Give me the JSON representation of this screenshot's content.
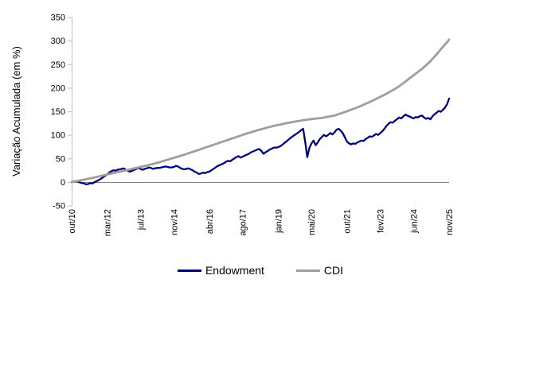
{
  "chart_data": {
    "type": "line",
    "title": "",
    "ylabel": "Variação Acumulada (em %)",
    "xlabel": "",
    "ylim": [
      -50,
      350
    ],
    "y_ticks": [
      350,
      300,
      250,
      200,
      150,
      100,
      50,
      0,
      -50
    ],
    "x_tick_labels": [
      "out/10",
      "mar/12",
      "jul/13",
      "nov/14",
      "abr/16",
      "ago/17",
      "jan/19",
      "mai/20",
      "out/21",
      "fev/23",
      "jun/24",
      "nov/25"
    ],
    "x_tick_positions": [
      0,
      17,
      33,
      49,
      66,
      82,
      99,
      115,
      132,
      148,
      164,
      181
    ],
    "x_range_months": 181,
    "grid": "zero-line-only",
    "legend_position": "bottom-center",
    "colors": {
      "endowment": "#00007f",
      "cdi": "#9e9e9e",
      "axis": "#bfbfbf",
      "zero_line": "#808080",
      "text": "#000000"
    },
    "legend": [
      {
        "label": "Endowment",
        "color": "#00007f"
      },
      {
        "label": "CDI",
        "color": "#9e9e9e"
      }
    ],
    "series": [
      {
        "name": "Endowment",
        "color": "#00007f",
        "stroke_width": 2.3,
        "values": [
          0,
          1,
          2,
          1,
          -1,
          -2,
          -3,
          -5,
          -4,
          -2,
          -3,
          0,
          2,
          4,
          7,
          10,
          13,
          16,
          20,
          23,
          25,
          24,
          26,
          27,
          28,
          29,
          26,
          24,
          22,
          24,
          26,
          28,
          30,
          28,
          26,
          28,
          29,
          31,
          30,
          28,
          29,
          30,
          30,
          31,
          32,
          33,
          32,
          31,
          31,
          32,
          34,
          33,
          30,
          28,
          27,
          28,
          29,
          27,
          25,
          22,
          20,
          17,
          18,
          20,
          19,
          21,
          22,
          25,
          28,
          31,
          34,
          36,
          38,
          40,
          43,
          45,
          44,
          47,
          50,
          53,
          55,
          52,
          54,
          56,
          58,
          60,
          63,
          65,
          67,
          69,
          70,
          66,
          60,
          63,
          66,
          69,
          71,
          73,
          73,
          74,
          76,
          79,
          83,
          86,
          90,
          94,
          97,
          100,
          103,
          106,
          110,
          113,
          85,
          53,
          72,
          82,
          88,
          78,
          84,
          91,
          96,
          100,
          97,
          100,
          104,
          101,
          105,
          111,
          113,
          109,
          104,
          95,
          86,
          82,
          80,
          82,
          81,
          84,
          86,
          88,
          87,
          91,
          94,
          97,
          96,
          99,
          102,
          100,
          104,
          108,
          113,
          119,
          124,
          127,
          126,
          130,
          133,
          137,
          135,
          139,
          143,
          141,
          139,
          137,
          135,
          138,
          137,
          140,
          141,
          137,
          134,
          136,
          133,
          139,
          144,
          147,
          151,
          149,
          153,
          158,
          165,
          177
        ]
      },
      {
        "name": "CDI",
        "color": "#9e9e9e",
        "stroke_width": 2.8,
        "values": [
          0,
          0.8,
          1.7,
          2.5,
          3.3,
          4.2,
          5,
          6,
          7,
          8,
          9,
          10,
          11,
          12,
          13,
          14,
          15,
          16,
          17,
          18,
          19,
          20,
          21,
          22,
          23,
          24,
          25,
          26,
          27,
          28,
          29,
          30,
          31,
          32,
          33,
          34,
          35,
          36.2,
          37.3,
          38.5,
          39.7,
          40.8,
          42,
          43.3,
          44.7,
          46,
          47.3,
          48.7,
          50,
          51.3,
          52.7,
          54,
          55.3,
          56.7,
          58,
          59.5,
          61,
          62.5,
          64,
          65.5,
          67,
          68.5,
          70,
          71.5,
          73,
          74.5,
          76,
          77.5,
          79,
          80.5,
          82,
          83.5,
          85,
          86.5,
          88,
          89.5,
          91,
          92.5,
          94,
          95.5,
          97,
          98.5,
          100,
          101.5,
          103,
          104.3,
          105.7,
          107,
          108.3,
          109.7,
          111,
          112.2,
          113.3,
          114.5,
          115.7,
          116.8,
          118,
          119,
          120,
          121,
          122,
          123,
          124,
          124.8,
          125.7,
          126.5,
          127.3,
          128.2,
          129,
          129.7,
          130.3,
          131,
          131.7,
          132.3,
          133,
          133.5,
          134,
          134.5,
          135,
          135.5,
          136,
          136.8,
          137.7,
          138.5,
          139.3,
          140.2,
          141,
          142.5,
          144,
          145.5,
          147,
          148.5,
          150,
          151.7,
          153.3,
          155,
          156.7,
          158.3,
          160,
          162,
          164,
          166,
          168,
          170,
          172,
          174.2,
          176.3,
          178.5,
          180.7,
          182.8,
          185,
          187.5,
          190,
          192.5,
          195,
          197.5,
          200,
          203,
          206.3,
          209.7,
          213,
          216.3,
          220,
          223.3,
          226.7,
          230,
          233.3,
          236.7,
          240,
          244,
          248,
          252,
          256,
          261,
          266,
          271,
          276,
          281.2,
          286.4,
          291.6,
          296.8,
          302
        ]
      }
    ]
  }
}
